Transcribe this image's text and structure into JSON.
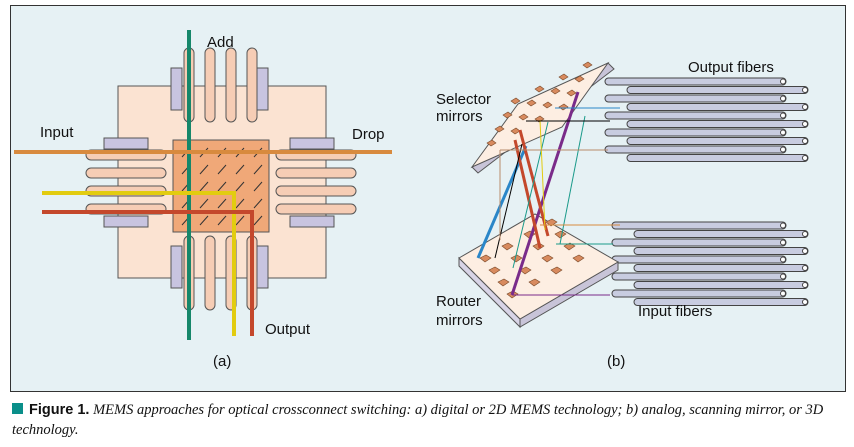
{
  "diagram_a": {
    "labels": {
      "add": "Add",
      "input": "Input",
      "drop": "Drop",
      "output": "Output"
    },
    "sublabel": "(a)"
  },
  "diagram_b": {
    "labels": {
      "output_fibers": "Output fibers",
      "selector_line1": "Selector",
      "selector_line2": "mirrors",
      "router_line1": "Router",
      "router_line2": "mirrors",
      "input_fibers": "Input fibers"
    },
    "sublabel": "(b)"
  },
  "caption": {
    "label": "Figure 1.",
    "text": "MEMS approaches for optical crossconnect switching: a) digital or 2D MEMS technology; b) analog, scanning mirror, or 3D technology."
  },
  "colors": {
    "panel": "#e6f1f4",
    "chip": "#fbe3d2",
    "center": "#f0a878",
    "pin": "#c8c4e0",
    "pad": "#f6cdb5",
    "green": "#16876a",
    "orange": "#d88a3e",
    "yellow": "#e2cc10",
    "red": "#c4482c",
    "blue": "#2a86c8",
    "purple": "#7a2b8a",
    "teal": "#1a9a8a",
    "fiber": "#c8cce0"
  }
}
